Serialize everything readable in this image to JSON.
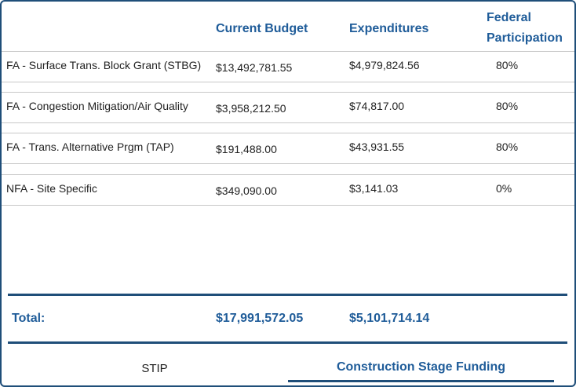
{
  "table": {
    "headers": [
      "Current Budget",
      "Expenditures",
      "Federal Participation"
    ],
    "rows": [
      [
        "FA - Surface Trans. Block Grant (STBG)",
        "$13,492,781.55",
        "$4,979,824.56",
        "80%"
      ],
      [
        "FA - Congestion Mitigation/Air Quality",
        "$3,958,212.50",
        "$74,817.00",
        "80%"
      ],
      [
        "FA - Trans. Alternative Prgm (TAP)",
        "$191,488.00",
        "$43,931.55",
        "80%"
      ],
      [
        "NFA - Site Specific",
        "$349,090.00",
        "$3,141.03",
        "0%"
      ]
    ],
    "total": {
      "label": "Total:",
      "budget": "$17,991,572.05",
      "expenditures": "$5,101,714.14"
    }
  },
  "tabs": [
    "STIP",
    "Construction Stage Funding"
  ]
}
